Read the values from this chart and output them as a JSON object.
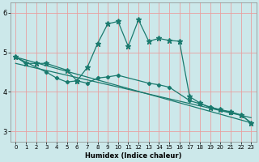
{
  "bg_color": "#cce8ea",
  "grid_color": "#e8a0a0",
  "line_color": "#1a7a6e",
  "xlabel": "Humidex (Indice chaleur)",
  "x_ticks": [
    0,
    1,
    2,
    3,
    4,
    5,
    6,
    7,
    8,
    9,
    10,
    11,
    12,
    13,
    14,
    15,
    16,
    17,
    18,
    19,
    20,
    21,
    22,
    23
  ],
  "y_ticks": [
    3,
    4,
    5,
    6
  ],
  "xlim": [
    -0.5,
    23.5
  ],
  "ylim": [
    2.75,
    6.25
  ],
  "series1_x": [
    0,
    1,
    2,
    3,
    5,
    6,
    7,
    8,
    9,
    10,
    11,
    12,
    13,
    14,
    15,
    16,
    17,
    18,
    19,
    20,
    21,
    22,
    23
  ],
  "series1_y": [
    4.88,
    4.72,
    4.72,
    4.72,
    4.55,
    4.28,
    4.62,
    5.22,
    5.72,
    5.78,
    5.15,
    5.82,
    5.28,
    5.35,
    5.3,
    5.28,
    3.88,
    3.72,
    3.6,
    3.55,
    3.5,
    3.42,
    3.22
  ],
  "series2_x": [
    0,
    3,
    4,
    5,
    6,
    7,
    8,
    9,
    10,
    13,
    14,
    15,
    17,
    18,
    19,
    20,
    21,
    22,
    23
  ],
  "series2_y": [
    4.88,
    4.5,
    4.35,
    4.25,
    4.28,
    4.22,
    4.35,
    4.38,
    4.42,
    4.22,
    4.18,
    4.12,
    3.78,
    3.7,
    3.62,
    3.55,
    3.48,
    3.42,
    3.22
  ],
  "series3_x": [
    0,
    23
  ],
  "series3_y": [
    4.88,
    3.22
  ],
  "series4_x": [
    0,
    23
  ],
  "series4_y": [
    4.72,
    3.35
  ]
}
